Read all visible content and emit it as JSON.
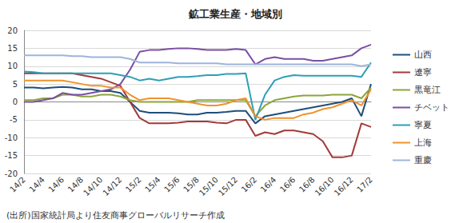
{
  "chart_data": {
    "type": "line",
    "title": "鉱工業生産・地域別",
    "annotations": [
      "(出所)国家統計局より住友商事グローバルリサーチ作成"
    ],
    "categories": [
      "14/2",
      null,
      "14/4",
      null,
      "14/6",
      null,
      "14/8",
      null,
      "14/10",
      null,
      "14/12",
      null,
      "15/2",
      null,
      "15/4",
      null,
      "15/6",
      null,
      "15/8",
      null,
      "15/10",
      null,
      "15/12",
      null,
      "16/2",
      null,
      "16/4",
      null,
      "16/6",
      null,
      "16/8",
      null,
      "16/10",
      null,
      "16/12",
      null,
      "17/2"
    ],
    "series": [
      {
        "name": "山西",
        "color": "#1F4E79",
        "values": [
          4,
          4,
          3.8,
          4,
          4.2,
          4,
          3.5,
          3.5,
          3,
          3,
          2.5,
          0,
          -2.5,
          -3,
          -3,
          -3,
          -3.2,
          -3.5,
          -3.5,
          -3,
          -3,
          -2.8,
          -2.5,
          -2.5,
          -6,
          -4,
          -3.5,
          -3,
          -2.5,
          -2,
          -1.5,
          -1,
          -0.5,
          0,
          1,
          -4,
          5
        ]
      },
      {
        "name": "遼寧",
        "color": "#A33A3A",
        "values": [
          8,
          8,
          8,
          8,
          8,
          8,
          7.5,
          7,
          6.5,
          5.5,
          4.5,
          0,
          -4.5,
          -6,
          -6,
          -6,
          -5.8,
          -5.5,
          -5.5,
          -5.5,
          -5.8,
          -6,
          -5,
          -5,
          -9.5,
          -8.5,
          -9,
          -8,
          -8,
          -8.5,
          -9,
          -11,
          -15.5,
          -15.5,
          -15,
          -6,
          -7
        ]
      },
      {
        "name": "黒竜江",
        "color": "#8BA63A",
        "values": [
          0.5,
          0.5,
          1,
          1,
          2,
          2,
          1.5,
          1.5,
          2,
          2,
          1.5,
          0.5,
          0,
          0,
          0,
          0,
          0,
          0,
          0.5,
          0.5,
          0.5,
          0.5,
          0.5,
          0.5,
          -4,
          -1,
          0.5,
          1,
          1.5,
          1.8,
          1.8,
          1.8,
          2,
          2,
          2,
          1,
          4
        ]
      },
      {
        "name": "チベット",
        "color": "#7A4FA3",
        "values": [
          0,
          0,
          0.5,
          1,
          2.5,
          2,
          2,
          2.5,
          3,
          3.5,
          5,
          9,
          14,
          14.5,
          14.5,
          14.8,
          15,
          15,
          14.8,
          14.5,
          14.5,
          14.5,
          14.8,
          14.5,
          10.5,
          12,
          12.5,
          12,
          12,
          12,
          11.5,
          11.5,
          12,
          12.5,
          13,
          15,
          16
        ]
      },
      {
        "name": "寧夏",
        "color": "#2E9FB5",
        "values": [
          8.5,
          8.3,
          8,
          8,
          8,
          8,
          8,
          8,
          8,
          8,
          7.5,
          7,
          6,
          6.5,
          6,
          6.5,
          7,
          7,
          7.2,
          7.5,
          7.5,
          7.8,
          7.8,
          8,
          -5,
          2,
          6,
          7,
          7.5,
          7.3,
          7.3,
          7.3,
          7.3,
          7.3,
          7.3,
          7,
          11
        ]
      },
      {
        "name": "上海",
        "color": "#F0922B",
        "values": [
          6,
          6,
          6,
          6,
          6,
          5.5,
          5,
          4.5,
          4.5,
          4,
          4,
          2,
          0.5,
          1,
          1,
          1,
          0.5,
          0,
          -0.5,
          -1,
          -1,
          -0.5,
          0.5,
          1,
          -4,
          -5,
          -4.5,
          -4.5,
          -4.5,
          -3.5,
          -3,
          -2,
          -1.5,
          -0.5,
          0.5,
          -1,
          3.5
        ]
      },
      {
        "name": "重慶",
        "color": "#9DB4DD",
        "values": [
          13,
          13,
          13,
          13,
          13,
          12.8,
          12.8,
          12.5,
          12.5,
          12.5,
          12.5,
          12,
          11,
          11,
          11,
          11,
          10.8,
          10.8,
          10.8,
          10.8,
          10.8,
          10.5,
          10.5,
          10.5,
          10.5,
          10.5,
          10.5,
          10.5,
          10.5,
          10.5,
          10.5,
          10.5,
          10.5,
          10.5,
          10.5,
          10,
          10.5
        ]
      }
    ],
    "ylim": [
      -20,
      20
    ],
    "yticks": [
      -20,
      -15,
      -10,
      -5,
      0,
      5,
      10,
      15,
      20
    ],
    "grid": true,
    "legend": "right"
  }
}
